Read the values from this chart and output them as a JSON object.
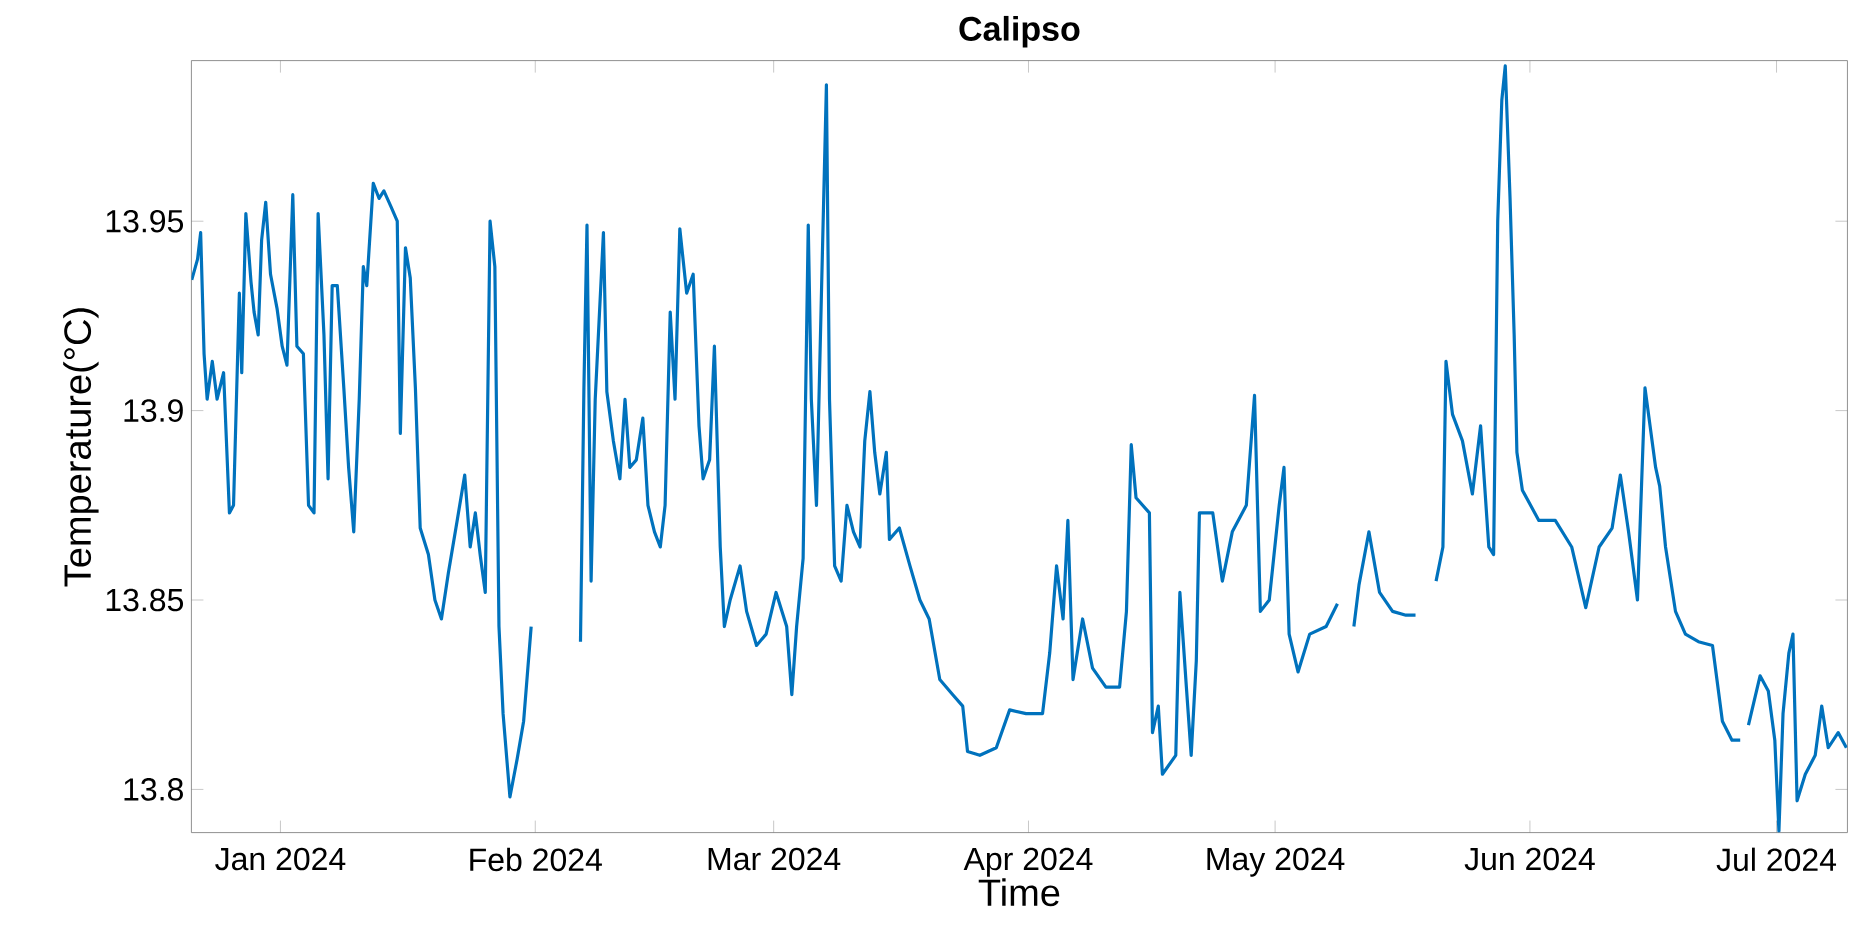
{
  "chart_data": {
    "type": "line",
    "title": "Calipso",
    "xlabel": "Time",
    "ylabel": "Temperature(°C)",
    "xlim": [
      "2023-12-21T04:00",
      "2024-07-09T15:00"
    ],
    "ylim": [
      13.7886,
      13.9924
    ],
    "xticks": [
      {
        "value": "2024-01-01",
        "label": "Jan 2024"
      },
      {
        "value": "2024-02-01",
        "label": "Feb 2024"
      },
      {
        "value": "2024-03-01",
        "label": "Mar 2024"
      },
      {
        "value": "2024-04-01",
        "label": "Apr 2024"
      },
      {
        "value": "2024-05-01",
        "label": "May 2024"
      },
      {
        "value": "2024-06-01",
        "label": "Jun 2024"
      },
      {
        "value": "2024-07-01",
        "label": "Jul 2024"
      }
    ],
    "yticks": [
      13.8,
      13.85,
      13.9,
      13.95
    ],
    "series": [
      {
        "color": "#0072bd",
        "x": [
          "2023-12-21T05:00",
          "2023-12-21T22:00",
          "2023-12-22T07:00",
          "2023-12-22T17:00",
          "2023-12-23T02:00",
          "2023-12-23T17:00",
          "2023-12-24T07:00",
          "2023-12-25T02:00",
          "2023-12-25T19:00",
          "2023-12-26T07:00",
          "2023-12-27T00:00",
          "2023-12-27T07:00",
          "2023-12-27T19:00",
          "2023-12-28T10:00",
          "2023-12-28T19:00",
          "2023-12-29T07:00",
          "2023-12-29T17:00",
          "2023-12-30T05:00",
          "2023-12-30T19:00",
          "2023-12-31T14:00",
          "2024-01-01T05:00",
          "2024-01-01T19:00",
          "2024-01-02T12:00",
          "2024-01-03T00:00",
          "2024-01-03T19:00",
          "2024-01-04T10:00",
          "2024-01-05T02:00",
          "2024-01-05T14:00",
          "2024-01-06T07:00",
          "2024-01-06T19:00",
          "2024-01-07T07:00",
          "2024-01-07T22:00",
          "2024-01-08T17:00",
          "2024-01-09T07:00",
          "2024-01-09T22:00",
          "2024-01-10T14:00",
          "2024-01-11T02:00",
          "2024-01-11T12:00",
          "2024-01-12T07:00",
          "2024-01-13T00:00",
          "2024-01-13T14:00",
          "2024-01-14T10:00",
          "2024-01-15T05:00",
          "2024-01-15T14:00",
          "2024-01-16T05:00",
          "2024-01-16T19:00",
          "2024-01-17T10:00",
          "2024-01-18T00:00",
          "2024-01-19T00:00",
          "2024-01-19T19:00",
          "2024-01-20T14:00",
          "2024-01-21T10:00",
          "2024-01-22T12:00",
          "2024-01-23T10:00",
          "2024-01-24T02:00",
          "2024-01-24T17:00",
          "2024-01-25T07:00",
          "2024-01-25T22:00",
          "2024-01-26T12:00",
          "2024-01-27T02:00",
          "2024-01-27T14:00",
          "2024-01-28T02:00",
          "2024-01-28T22:00",
          "2024-01-29T19:00",
          "2024-01-30T14:00",
          "2024-01-31T12:00",
          "2024-02-03T00:00",
          "2024-02-06T12:00",
          "2024-02-06T22:00",
          "2024-02-07T07:00",
          "2024-02-07T19:00",
          "2024-02-08T07:00",
          "2024-02-09T07:00",
          "2024-02-09T17:00",
          "2024-02-10T12:00",
          "2024-02-11T07:00",
          "2024-02-11T22:00",
          "2024-02-12T12:00",
          "2024-02-13T07:00",
          "2024-02-14T02:00",
          "2024-02-14T17:00",
          "2024-02-15T12:00",
          "2024-02-16T05:00",
          "2024-02-16T19:00",
          "2024-02-17T10:00",
          "2024-02-18T00:00",
          "2024-02-18T14:00",
          "2024-02-19T10:00",
          "2024-02-20T05:00",
          "2024-02-20T22:00",
          "2024-02-21T10:00",
          "2024-02-22T05:00",
          "2024-02-22T19:00",
          "2024-02-23T12:00",
          "2024-02-24T00:00",
          "2024-02-24T17:00",
          "2024-02-25T22:00",
          "2024-02-26T17:00",
          "2024-02-27T22:00",
          "2024-02-29T02:00",
          "2024-03-01T07:00",
          "2024-03-02T14:00",
          "2024-03-03T05:00",
          "2024-03-03T19:00",
          "2024-03-04T14:00",
          "2024-03-05T05:00",
          "2024-03-05T14:00",
          "2024-03-06T05:00",
          "2024-03-06T19:00",
          "2024-03-07T10:00",
          "2024-03-07T19:00",
          "2024-03-08T10:00",
          "2024-03-09T05:00",
          "2024-03-09T22:00",
          "2024-03-10T17:00",
          "2024-03-11T12:00",
          "2024-03-12T02:00",
          "2024-03-12T17:00",
          "2024-03-13T07:00",
          "2024-03-13T22:00",
          "2024-03-14T17:00",
          "2024-03-15T02:00",
          "2024-03-16T07:00",
          "2024-03-17T14:00",
          "2024-03-18T19:00",
          "2024-03-19T22:00",
          "2024-03-21T05:00",
          "2024-03-22T19:00",
          "2024-03-24T00:00",
          "2024-03-24T14:00",
          "2024-03-26T02:00",
          "2024-03-28T02:00",
          "2024-03-29T17:00",
          "2024-03-31T17:00",
          "2024-04-02T17:00",
          "2024-04-03T14:00",
          "2024-04-04T10:00",
          "2024-04-05T05:00",
          "2024-04-05T19:00",
          "2024-04-06T10:00",
          "2024-04-07T14:00",
          "2024-04-08T19:00",
          "2024-04-10T10:00",
          "2024-04-12T02:00",
          "2024-04-12T22:00",
          "2024-04-13T12:00",
          "2024-04-14T02:00",
          "2024-04-15T17:00",
          "2024-04-16T02:00",
          "2024-04-16T19:00",
          "2024-04-17T07:00",
          "2024-04-18T22:00",
          "2024-04-19T10:00",
          "2024-04-20T05:00",
          "2024-04-20T19:00",
          "2024-04-21T10:00",
          "2024-04-21T19:00",
          "2024-04-23T10:00",
          "2024-04-24T14:00",
          "2024-04-25T19:00",
          "2024-04-27T12:00",
          "2024-04-28T12:00",
          "2024-04-29T05:00",
          "2024-04-30T07:00",
          "2024-05-01T12:00",
          "2024-05-02T02:00",
          "2024-05-02T17:00",
          "2024-05-03T19:00",
          "2024-05-05T05:00",
          "2024-05-07T05:00",
          "2024-05-08T14:00",
          "2024-05-09T12:00",
          "2024-05-10T14:00",
          "2024-05-11T05:00",
          "2024-05-12T10:00",
          "2024-05-13T17:00",
          "2024-05-15T07:00",
          "2024-05-16T22:00",
          "2024-05-18T02:00",
          "2024-05-19T12:00",
          "2024-05-20T14:00",
          "2024-05-21T10:00",
          "2024-05-21T19:00",
          "2024-05-22T14:00",
          "2024-05-23T19:00",
          "2024-05-25T00:00",
          "2024-05-26T00:00",
          "2024-05-27T00:00",
          "2024-05-27T14:00",
          "2024-05-28T02:00",
          "2024-05-28T14:00",
          "2024-05-29T00:00",
          "2024-05-29T14:00",
          "2024-05-30T02:00",
          "2024-05-30T10:00",
          "2024-05-31T02:00",
          "2024-06-02T02:00",
          "2024-06-04T02:00",
          "2024-06-06T02:00",
          "2024-06-07T19:00",
          "2024-06-09T10:00",
          "2024-06-11T00:00",
          "2024-06-12T00:00",
          "2024-06-13T00:00",
          "2024-06-14T02:00",
          "2024-06-15T00:00",
          "2024-06-16T07:00",
          "2024-06-16T19:00",
          "2024-06-17T12:00",
          "2024-06-18T17:00",
          "2024-06-19T22:00",
          "2024-06-21T12:00",
          "2024-06-23T05:00",
          "2024-06-24T10:00",
          "2024-06-25T14:00",
          "2024-06-26T14:00",
          "2024-06-27T02:00",
          "2024-06-27T14:00",
          "2024-06-29T00:00",
          "2024-06-30T00:00",
          "2024-06-30T19:00",
          "2024-07-01T07:00",
          "2024-07-01T19:00",
          "2024-07-02T12:00",
          "2024-07-03T00:00",
          "2024-07-03T12:00",
          "2024-07-04T12:00",
          "2024-07-05T17:00",
          "2024-07-06T12:00",
          "2024-07-07T07:00",
          "2024-07-08T12:00",
          "2024-07-09T12:00"
        ],
        "values": [
          13.9345,
          13.94,
          13.947,
          13.915,
          13.903,
          13.913,
          13.903,
          13.91,
          13.873,
          13.875,
          13.931,
          13.91,
          13.952,
          13.934,
          13.926,
          13.92,
          13.945,
          13.955,
          13.936,
          13.927,
          13.917,
          13.912,
          13.957,
          13.917,
          13.915,
          13.875,
          13.873,
          13.952,
          13.92,
          13.882,
          13.933,
          13.933,
          13.906,
          13.885,
          13.868,
          13.903,
          13.938,
          13.933,
          13.96,
          13.956,
          13.958,
          13.954,
          13.95,
          13.894,
          13.943,
          13.935,
          13.906,
          13.869,
          13.862,
          13.85,
          13.845,
          13.857,
          13.871,
          13.883,
          13.864,
          13.873,
          13.862,
          13.852,
          13.95,
          13.938,
          13.843,
          13.82,
          13.798,
          13.808,
          13.818,
          13.843,
          null,
          13.839,
          13.906,
          13.949,
          13.855,
          13.903,
          13.947,
          13.905,
          13.892,
          13.882,
          13.903,
          13.885,
          13.887,
          13.898,
          13.875,
          13.868,
          13.864,
          13.875,
          13.926,
          13.903,
          13.948,
          13.931,
          13.936,
          13.896,
          13.882,
          13.887,
          13.917,
          13.864,
          13.843,
          13.85,
          13.859,
          13.847,
          13.838,
          13.841,
          13.852,
          13.843,
          13.825,
          13.843,
          13.861,
          13.949,
          13.903,
          13.875,
          13.929,
          13.986,
          13.903,
          13.859,
          13.855,
          13.875,
          13.868,
          13.864,
          13.892,
          13.905,
          13.889,
          13.878,
          13.889,
          13.866,
          13.869,
          13.859,
          13.85,
          13.845,
          13.829,
          13.825,
          13.822,
          13.81,
          13.809,
          13.811,
          13.821,
          13.82,
          13.82,
          13.836,
          13.859,
          13.845,
          13.871,
          13.829,
          13.845,
          13.832,
          13.827,
          13.827,
          13.847,
          13.891,
          13.877,
          13.873,
          13.815,
          13.822,
          13.804,
          13.809,
          13.852,
          13.827,
          13.809,
          13.834,
          13.873,
          13.873,
          13.855,
          13.868,
          13.875,
          13.904,
          13.847,
          13.85,
          13.875,
          13.885,
          13.841,
          13.831,
          13.841,
          13.843,
          13.849,
          null,
          13.843,
          13.854,
          13.868,
          13.852,
          13.847,
          13.846,
          13.846,
          null,
          13.855,
          13.864,
          13.913,
          13.899,
          13.892,
          13.878,
          13.896,
          13.864,
          13.862,
          13.95,
          13.982,
          13.991,
          13.956,
          13.92,
          13.889,
          13.879,
          13.871,
          13.871,
          13.864,
          13.848,
          13.864,
          13.869,
          13.883,
          13.868,
          13.85,
          13.906,
          13.885,
          13.88,
          13.864,
          13.847,
          13.841,
          13.839,
          13.838,
          13.818,
          13.813,
          13.813,
          null,
          13.817,
          13.83,
          13.826,
          13.813,
          13.789,
          13.82,
          13.836,
          13.841,
          13.797,
          13.804,
          13.809,
          13.822,
          13.811,
          13.815,
          13.811
        ]
      }
    ]
  }
}
